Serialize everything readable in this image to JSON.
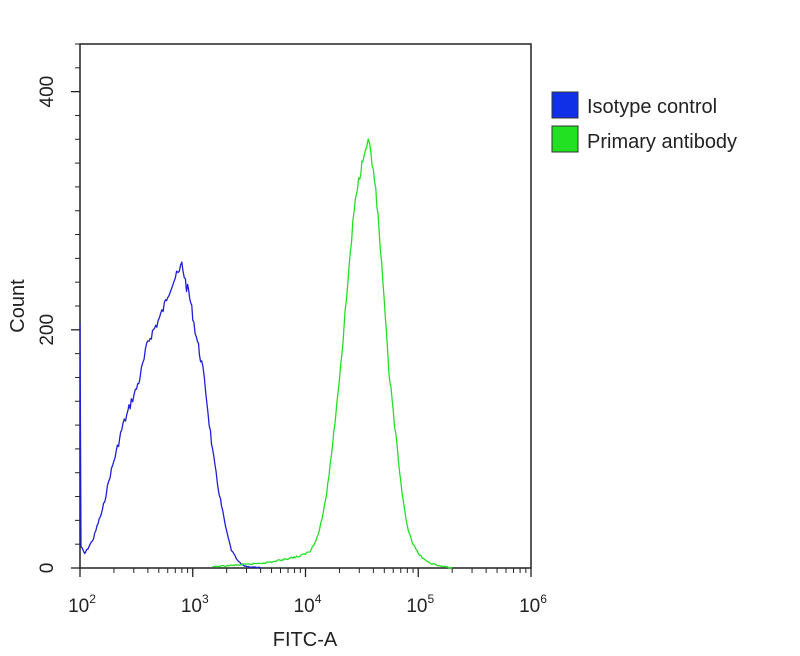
{
  "chart_data": {
    "type": "line",
    "title": "",
    "xlabel": "FITC-A",
    "ylabel": "Count",
    "x_scale": "log",
    "xlim": [
      100,
      1000000
    ],
    "ylim": [
      0,
      440
    ],
    "x_ticks": [
      {
        "base": "10",
        "exp": "2"
      },
      {
        "base": "10",
        "exp": "3"
      },
      {
        "base": "10",
        "exp": "4"
      },
      {
        "base": "10",
        "exp": "5"
      },
      {
        "base": "10",
        "exp": "6"
      }
    ],
    "y_ticks": [
      {
        "value": 0,
        "label": "0"
      },
      {
        "value": 200,
        "label": "200"
      },
      {
        "value": 400,
        "label": "400"
      }
    ],
    "grid": false,
    "legend_position": "right",
    "series": [
      {
        "name": "Isotype control",
        "color": "#1f1fd6",
        "legend_color": "#1030e8",
        "points": [
          [
            100,
            205
          ],
          [
            102,
            18
          ],
          [
            110,
            12
          ],
          [
            120,
            18
          ],
          [
            132,
            25
          ],
          [
            145,
            38
          ],
          [
            158,
            48
          ],
          [
            170,
            62
          ],
          [
            185,
            78
          ],
          [
            200,
            90
          ],
          [
            220,
            105
          ],
          [
            240,
            120
          ],
          [
            260,
            128
          ],
          [
            285,
            140
          ],
          [
            310,
            148
          ],
          [
            340,
            160
          ],
          [
            370,
            175
          ],
          [
            400,
            190
          ],
          [
            440,
            198
          ],
          [
            480,
            205
          ],
          [
            520,
            212
          ],
          [
            560,
            220
          ],
          [
            600,
            230
          ],
          [
            650,
            238
          ],
          [
            700,
            244
          ],
          [
            760,
            248
          ],
          [
            800,
            256
          ],
          [
            840,
            246
          ],
          [
            880,
            236
          ],
          [
            920,
            232
          ],
          [
            960,
            222
          ],
          [
            1000,
            212
          ],
          [
            1050,
            200
          ],
          [
            1100,
            190
          ],
          [
            1200,
            172
          ],
          [
            1300,
            150
          ],
          [
            1400,
            122
          ],
          [
            1500,
            98
          ],
          [
            1650,
            72
          ],
          [
            1800,
            52
          ],
          [
            2000,
            30
          ],
          [
            2200,
            15
          ],
          [
            2500,
            6
          ],
          [
            2800,
            2
          ],
          [
            3200,
            1
          ],
          [
            4000,
            0
          ]
        ]
      },
      {
        "name": "Primary antibody",
        "color": "#22e022",
        "legend_color": "#22e022",
        "points": [
          [
            1500,
            1
          ],
          [
            3000,
            3
          ],
          [
            5000,
            5
          ],
          [
            7000,
            8
          ],
          [
            9000,
            10
          ],
          [
            11000,
            14
          ],
          [
            13000,
            28
          ],
          [
            15000,
            55
          ],
          [
            17000,
            95
          ],
          [
            19000,
            140
          ],
          [
            21000,
            180
          ],
          [
            23000,
            225
          ],
          [
            25000,
            265
          ],
          [
            27000,
            300
          ],
          [
            29000,
            320
          ],
          [
            31000,
            335
          ],
          [
            33000,
            350
          ],
          [
            35000,
            358
          ],
          [
            37000,
            356
          ],
          [
            39000,
            340
          ],
          [
            42000,
            318
          ],
          [
            46000,
            270
          ],
          [
            50000,
            220
          ],
          [
            55000,
            165
          ],
          [
            60000,
            130
          ],
          [
            65000,
            100
          ],
          [
            72000,
            60
          ],
          [
            80000,
            35
          ],
          [
            90000,
            20
          ],
          [
            100000,
            12
          ],
          [
            120000,
            5
          ],
          [
            150000,
            2
          ],
          [
            200000,
            0
          ]
        ]
      }
    ]
  }
}
